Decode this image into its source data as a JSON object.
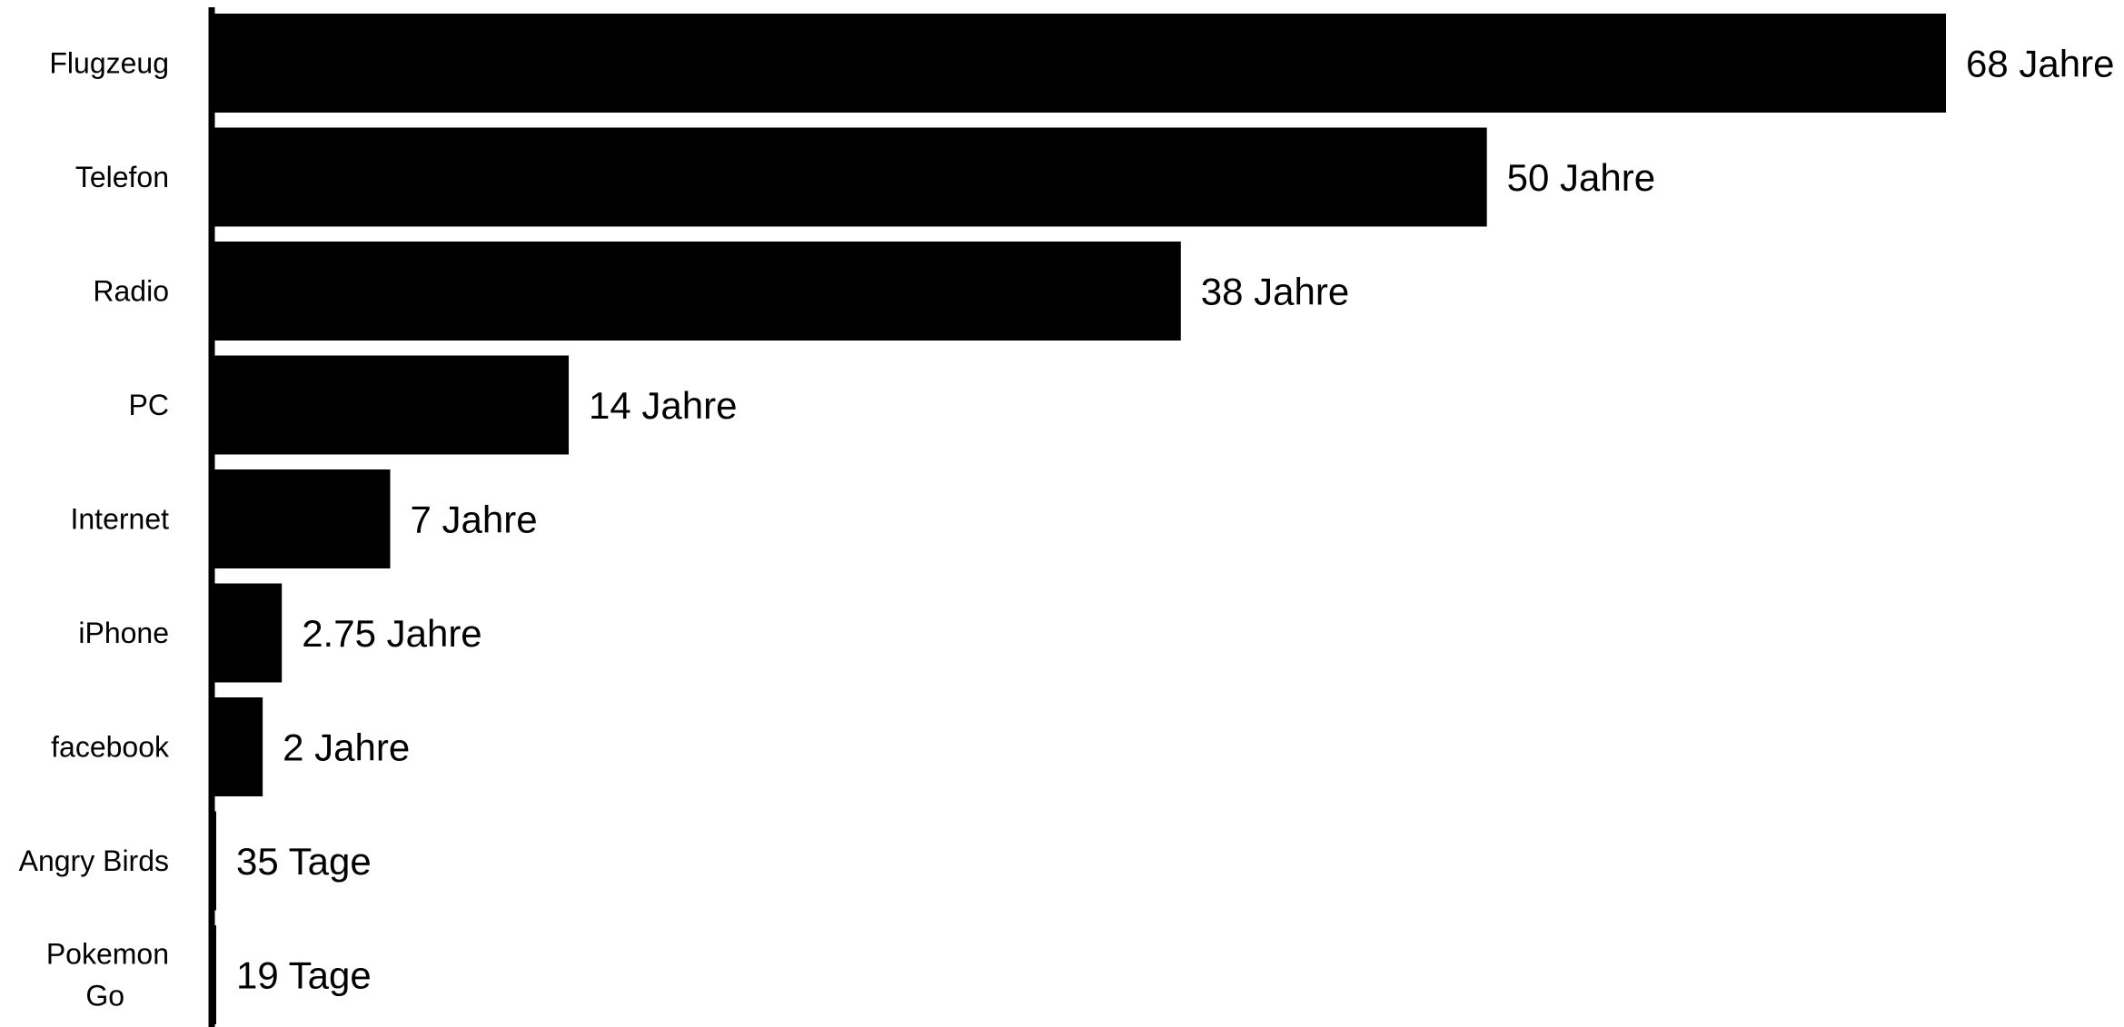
{
  "chart_data": {
    "type": "bar",
    "orientation": "horizontal",
    "categories": [
      "Flugzeug",
      "Telefon",
      "Radio",
      "PC",
      "Internet",
      "iPhone",
      "facebook",
      "Angry Birds",
      "Pokemon Go"
    ],
    "values": [
      68,
      50,
      38,
      14,
      7,
      2.75,
      2,
      0.0958,
      0.052
    ],
    "value_unit": "Jahre",
    "data_labels": [
      "68 Jahre",
      "50 Jahre",
      "38 Jahre",
      "14 Jahre",
      "7 Jahre",
      "2.75 Jahre",
      "2 Jahre",
      "35 Tage",
      "19 Tage"
    ],
    "xlim": [
      0,
      68
    ],
    "bar_color": "#000000",
    "axis_color": "#000000",
    "grid": false,
    "legend": "none"
  }
}
